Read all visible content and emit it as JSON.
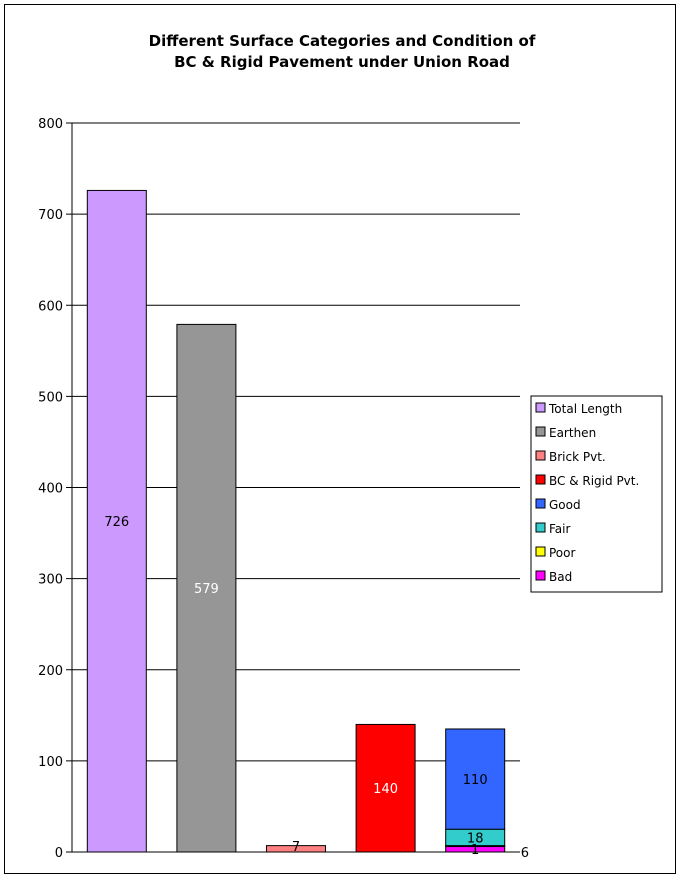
{
  "chart_data": {
    "type": "bar",
    "title_lines": [
      "Different Surface Categories and Condition of",
      "BC & Rigid Pavement under Union Road"
    ],
    "ylim": [
      0,
      800
    ],
    "y_ticks": [
      0,
      100,
      200,
      300,
      400,
      500,
      600,
      700,
      800
    ],
    "grid": true,
    "legend_position": "right",
    "bars": [
      {
        "series": "Total Length",
        "value": 726,
        "label": "726",
        "color": "#CC99FF",
        "label_color": "#000000"
      },
      {
        "series": "Earthen",
        "value": 579,
        "label": "579",
        "color": "#969696",
        "label_color": "#FFFFFF"
      },
      {
        "series": "Brick Pvt.",
        "value": 7,
        "label": "7",
        "color": "#FF8080",
        "label_color": "#000000"
      },
      {
        "series": "BC & Rigid Pvt.",
        "value": 140,
        "label": "140",
        "color": "#FF0000",
        "label_color": "#FFFFFF"
      }
    ],
    "stacked_bar": {
      "segments": [
        {
          "series": "Bad",
          "value": 6,
          "label": "6",
          "color": "#FF00FF"
        },
        {
          "series": "Poor",
          "value": 1,
          "label": "1",
          "color": "#FFFF00"
        },
        {
          "series": "Fair",
          "value": 18,
          "label": "18",
          "color": "#33CCCC"
        },
        {
          "series": "Good",
          "value": 110,
          "label": "110",
          "color": "#3366FF"
        }
      ]
    },
    "legend": [
      {
        "name": "Total Length",
        "color": "#CC99FF"
      },
      {
        "name": "Earthen",
        "color": "#969696"
      },
      {
        "name": "Brick Pvt.",
        "color": "#FF8080"
      },
      {
        "name": "BC & Rigid Pvt.",
        "color": "#FF0000"
      },
      {
        "name": "Good",
        "color": "#3366FF"
      },
      {
        "name": "Fair",
        "color": "#33CCCC"
      },
      {
        "name": "Poor",
        "color": "#FFFF00"
      },
      {
        "name": "Bad",
        "color": "#FF00FF"
      }
    ]
  }
}
